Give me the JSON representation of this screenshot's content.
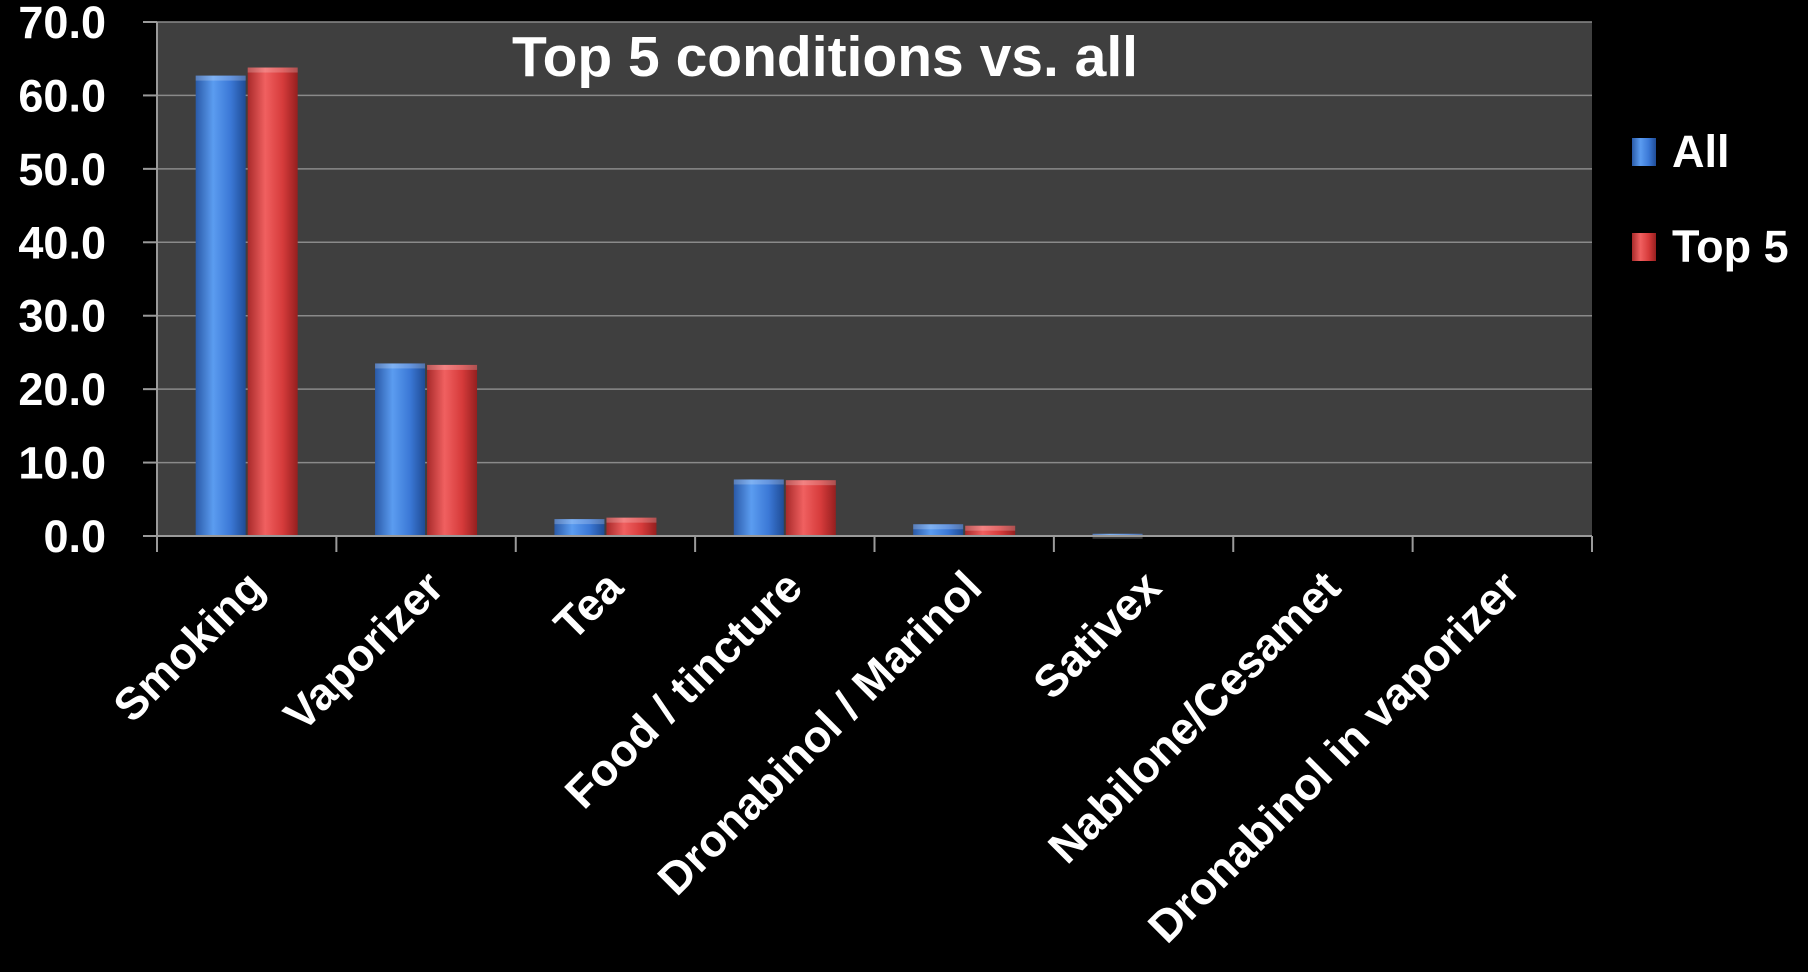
{
  "chart_data": {
    "type": "bar",
    "title": "Top 5 conditions vs. all",
    "xlabel": "",
    "ylabel": "",
    "categories": [
      "Smoking",
      "Vaporizer",
      "Tea",
      "Food / tincture",
      "Dronabinol / Marinol",
      "Sativex",
      "Nabilone/Cesamet",
      "Dronabinol in vaporizer"
    ],
    "series": [
      {
        "name": "All",
        "values": [
          62.7,
          23.5,
          2.3,
          7.7,
          1.6,
          0.3,
          0.0,
          0.0
        ]
      },
      {
        "name": "Top 5",
        "values": [
          63.8,
          23.3,
          2.5,
          7.6,
          1.4,
          0.1,
          0.1,
          0.0
        ]
      }
    ],
    "ylim": [
      0,
      70
    ],
    "y_ticks": [
      "0.0",
      "10.0",
      "20.0",
      "30.0",
      "40.0",
      "50.0",
      "60.0",
      "70.0"
    ],
    "grid": true,
    "legend_position": "right",
    "colors": {
      "page_background": "#000000",
      "plot_background": "#3f3f3f",
      "gridline": "#8a8a8a",
      "axis": "#9a9a9a",
      "all": "#3b78d6",
      "top5": "#d63b3b"
    }
  }
}
